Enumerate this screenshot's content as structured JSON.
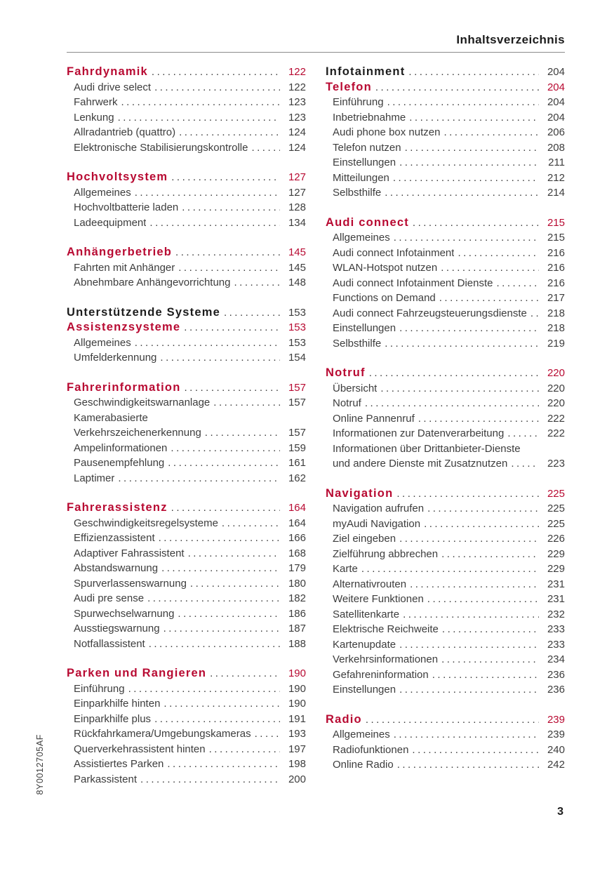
{
  "page": {
    "header": "Inhaltsverzeichnis",
    "page_number": "3",
    "sidebar_code": "8Y0012705AF",
    "accent_red": "#b80a32"
  },
  "columns": [
    {
      "sections": [
        {
          "headers": [
            {
              "label": "Fahrdynamik",
              "page": "122",
              "style": "chapter"
            }
          ],
          "entries": [
            {
              "label": "Audi drive select",
              "page": "122"
            },
            {
              "label": "Fahrwerk",
              "page": "123"
            },
            {
              "label": "Lenkung",
              "page": "123"
            },
            {
              "label": "Allradantrieb (quattro)",
              "page": "124"
            },
            {
              "label": "Elektronische Stabilisierungskontrolle",
              "page": "124"
            }
          ]
        },
        {
          "headers": [
            {
              "label": "Hochvoltsystem",
              "page": "127",
              "style": "chapter"
            }
          ],
          "entries": [
            {
              "label": "Allgemeines",
              "page": "127"
            },
            {
              "label": "Hochvoltbatterie laden",
              "page": "128"
            },
            {
              "label": "Ladeequipment",
              "page": "134"
            }
          ]
        },
        {
          "headers": [
            {
              "label": "Anhängerbetrieb",
              "page": "145",
              "style": "chapter"
            }
          ],
          "entries": [
            {
              "label": "Fahrten mit Anhänger",
              "page": "145"
            },
            {
              "label": "Abnehmbare Anhängevorrichtung",
              "page": "148"
            }
          ]
        },
        {
          "headers": [
            {
              "label": "Unterstützende Systeme",
              "page": "153",
              "style": "part"
            },
            {
              "label": "Assistenzsysteme",
              "page": "153",
              "style": "chapter"
            }
          ],
          "entries": [
            {
              "label": "Allgemeines",
              "page": "153"
            },
            {
              "label": "Umfelderkennung",
              "page": "154"
            }
          ]
        },
        {
          "headers": [
            {
              "label": "Fahrerinformation",
              "page": "157",
              "style": "chapter"
            }
          ],
          "entries": [
            {
              "label": "Geschwindigkeitswarnanlage",
              "page": "157"
            },
            {
              "label": "Kamerabasierte",
              "page": null
            },
            {
              "label": "Verkehrszeichenerkennung",
              "page": "157"
            },
            {
              "label": "Ampelinformationen",
              "page": "159"
            },
            {
              "label": "Pausenempfehlung",
              "page": "161"
            },
            {
              "label": "Laptimer",
              "page": "162"
            }
          ]
        },
        {
          "headers": [
            {
              "label": "Fahrerassistenz",
              "page": "164",
              "style": "chapter"
            }
          ],
          "entries": [
            {
              "label": "Geschwindigkeitsregelsysteme",
              "page": "164"
            },
            {
              "label": "Effizienzassistent",
              "page": "166"
            },
            {
              "label": "Adaptiver Fahrassistent",
              "page": "168"
            },
            {
              "label": "Abstandswarnung",
              "page": "179"
            },
            {
              "label": "Spurverlassenswarnung",
              "page": "180"
            },
            {
              "label": "Audi pre sense",
              "page": "182"
            },
            {
              "label": "Spurwechselwarnung",
              "page": "186"
            },
            {
              "label": "Ausstiegswarnung",
              "page": "187"
            },
            {
              "label": "Notfallassistent",
              "page": "188"
            }
          ]
        },
        {
          "headers": [
            {
              "label": "Parken und Rangieren",
              "page": "190",
              "style": "chapter"
            }
          ],
          "entries": [
            {
              "label": "Einführung",
              "page": "190"
            },
            {
              "label": "Einparkhilfe hinten",
              "page": "190"
            },
            {
              "label": "Einparkhilfe plus",
              "page": "191"
            },
            {
              "label": "Rückfahrkamera/Umgebungskameras",
              "page": "193"
            },
            {
              "label": "Querverkehrassistent hinten",
              "page": "197"
            },
            {
              "label": "Assistiertes Parken",
              "page": "198"
            },
            {
              "label": "Parkassistent",
              "page": "200"
            }
          ]
        }
      ]
    },
    {
      "sections": [
        {
          "headers": [
            {
              "label": "Infotainment",
              "page": "204",
              "style": "part"
            },
            {
              "label": "Telefon",
              "page": "204",
              "style": "chapter"
            }
          ],
          "entries": [
            {
              "label": "Einführung",
              "page": "204"
            },
            {
              "label": "Inbetriebnahme",
              "page": "204"
            },
            {
              "label": "Audi phone box nutzen",
              "page": "206"
            },
            {
              "label": "Telefon nutzen",
              "page": "208"
            },
            {
              "label": "Einstellungen",
              "page": "211"
            },
            {
              "label": "Mitteilungen",
              "page": "212"
            },
            {
              "label": "Selbsthilfe",
              "page": "214"
            }
          ]
        },
        {
          "headers": [
            {
              "label": "Audi connect",
              "page": "215",
              "style": "chapter"
            }
          ],
          "entries": [
            {
              "label": "Allgemeines",
              "page": "215"
            },
            {
              "label": "Audi connect Infotainment",
              "page": "216"
            },
            {
              "label": "WLAN-Hotspot nutzen",
              "page": "216"
            },
            {
              "label": "Audi connect Infotainment Dienste",
              "page": "216"
            },
            {
              "label": "Functions on Demand",
              "page": "217"
            },
            {
              "label": "Audi connect Fahrzeugsteuerungsdienste",
              "page": "218"
            },
            {
              "label": "Einstellungen",
              "page": "218"
            },
            {
              "label": "Selbsthilfe",
              "page": "219"
            }
          ]
        },
        {
          "headers": [
            {
              "label": "Notruf",
              "page": "220",
              "style": "chapter"
            }
          ],
          "entries": [
            {
              "label": "Übersicht",
              "page": "220"
            },
            {
              "label": "Notruf",
              "page": "220"
            },
            {
              "label": "Online Pannenruf",
              "page": "222"
            },
            {
              "label": "Informationen zur Datenverarbeitung",
              "page": "222"
            },
            {
              "label": "Informationen über Drittanbieter-Dienste",
              "page": null
            },
            {
              "label": "und andere Dienste mit Zusatznutzen",
              "page": "223"
            }
          ]
        },
        {
          "headers": [
            {
              "label": "Navigation",
              "page": "225",
              "style": "chapter"
            }
          ],
          "entries": [
            {
              "label": "Navigation aufrufen",
              "page": "225"
            },
            {
              "label": "myAudi Navigation",
              "page": "225"
            },
            {
              "label": "Ziel eingeben",
              "page": "226"
            },
            {
              "label": "Zielführung abbrechen",
              "page": "229"
            },
            {
              "label": "Karte",
              "page": "229"
            },
            {
              "label": "Alternativrouten",
              "page": "231"
            },
            {
              "label": "Weitere Funktionen",
              "page": "231"
            },
            {
              "label": "Satellitenkarte",
              "page": "232"
            },
            {
              "label": "Elektrische Reichweite",
              "page": "233"
            },
            {
              "label": "Kartenupdate",
              "page": "233"
            },
            {
              "label": "Verkehrsinformationen",
              "page": "234"
            },
            {
              "label": "Gefahreninformation",
              "page": "236"
            },
            {
              "label": "Einstellungen",
              "page": "236"
            }
          ]
        },
        {
          "headers": [
            {
              "label": "Radio",
              "page": "239",
              "style": "chapter"
            }
          ],
          "entries": [
            {
              "label": "Allgemeines",
              "page": "239"
            },
            {
              "label": "Radiofunktionen",
              "page": "240"
            },
            {
              "label": "Online Radio",
              "page": "242"
            }
          ]
        }
      ]
    }
  ]
}
